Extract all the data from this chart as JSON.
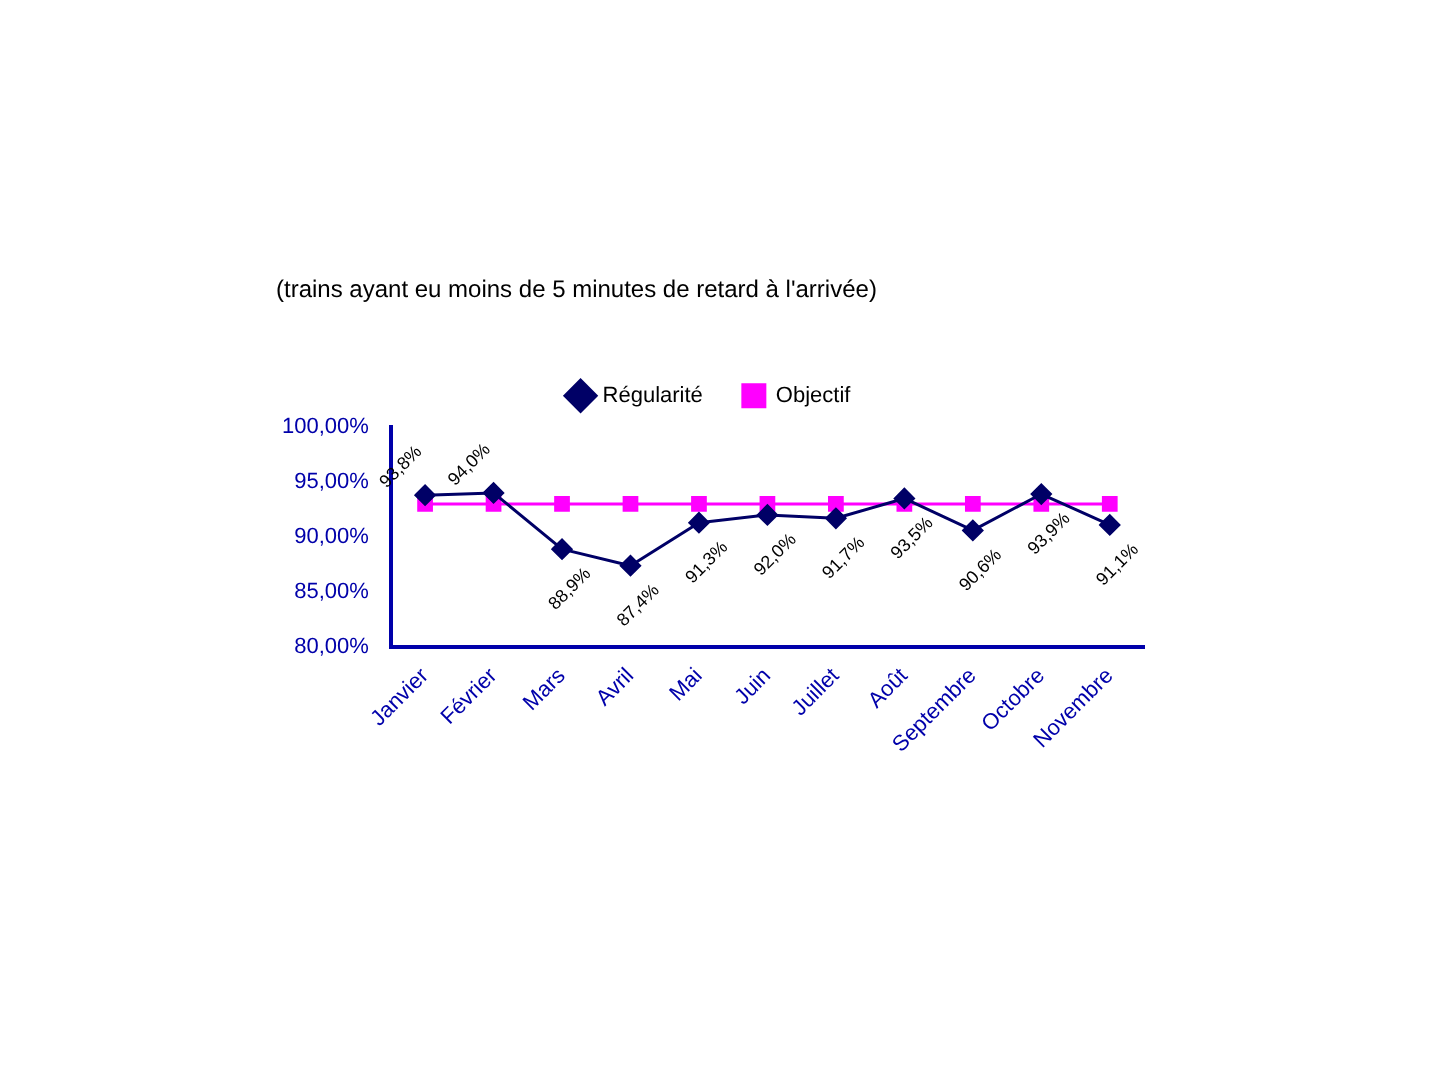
{
  "chart_data": {
    "type": "line",
    "title": "(trains ayant eu moins de 5 minutes de retard à l'arrivée)",
    "categories": [
      "Janvier",
      "Février",
      "Mars",
      "Avril",
      "Mai",
      "Juin",
      "Juillet",
      "Août",
      "Septembre",
      "Octobre",
      "Novembre"
    ],
    "series": [
      {
        "name": "Régularité",
        "color": "#000066",
        "marker": "diamond",
        "values": [
          93.8,
          94.0,
          88.9,
          87.4,
          91.3,
          92.0,
          91.7,
          93.5,
          90.6,
          93.9,
          91.1
        ],
        "value_labels": [
          "93,8%",
          "94,0%",
          "88,9%",
          "87,4%",
          "91,3%",
          "92,0%",
          "91,7%",
          "93,5%",
          "90,6%",
          "93,9%",
          "91,1%"
        ]
      },
      {
        "name": "Objectif",
        "color": "#ff00ff",
        "marker": "square",
        "values": [
          93,
          93,
          93,
          93,
          93,
          93,
          93,
          93,
          93,
          93,
          93
        ]
      }
    ],
    "ylim": [
      80,
      100
    ],
    "yticks": [
      {
        "value": 80,
        "label": "80,00%"
      },
      {
        "value": 85,
        "label": "85,00%"
      },
      {
        "value": 90,
        "label": "90,00%"
      },
      {
        "value": 95,
        "label": "95,00%"
      },
      {
        "value": 100,
        "label": "100,00%"
      }
    ],
    "legend": "top",
    "grid": false,
    "line_style": "solid"
  }
}
